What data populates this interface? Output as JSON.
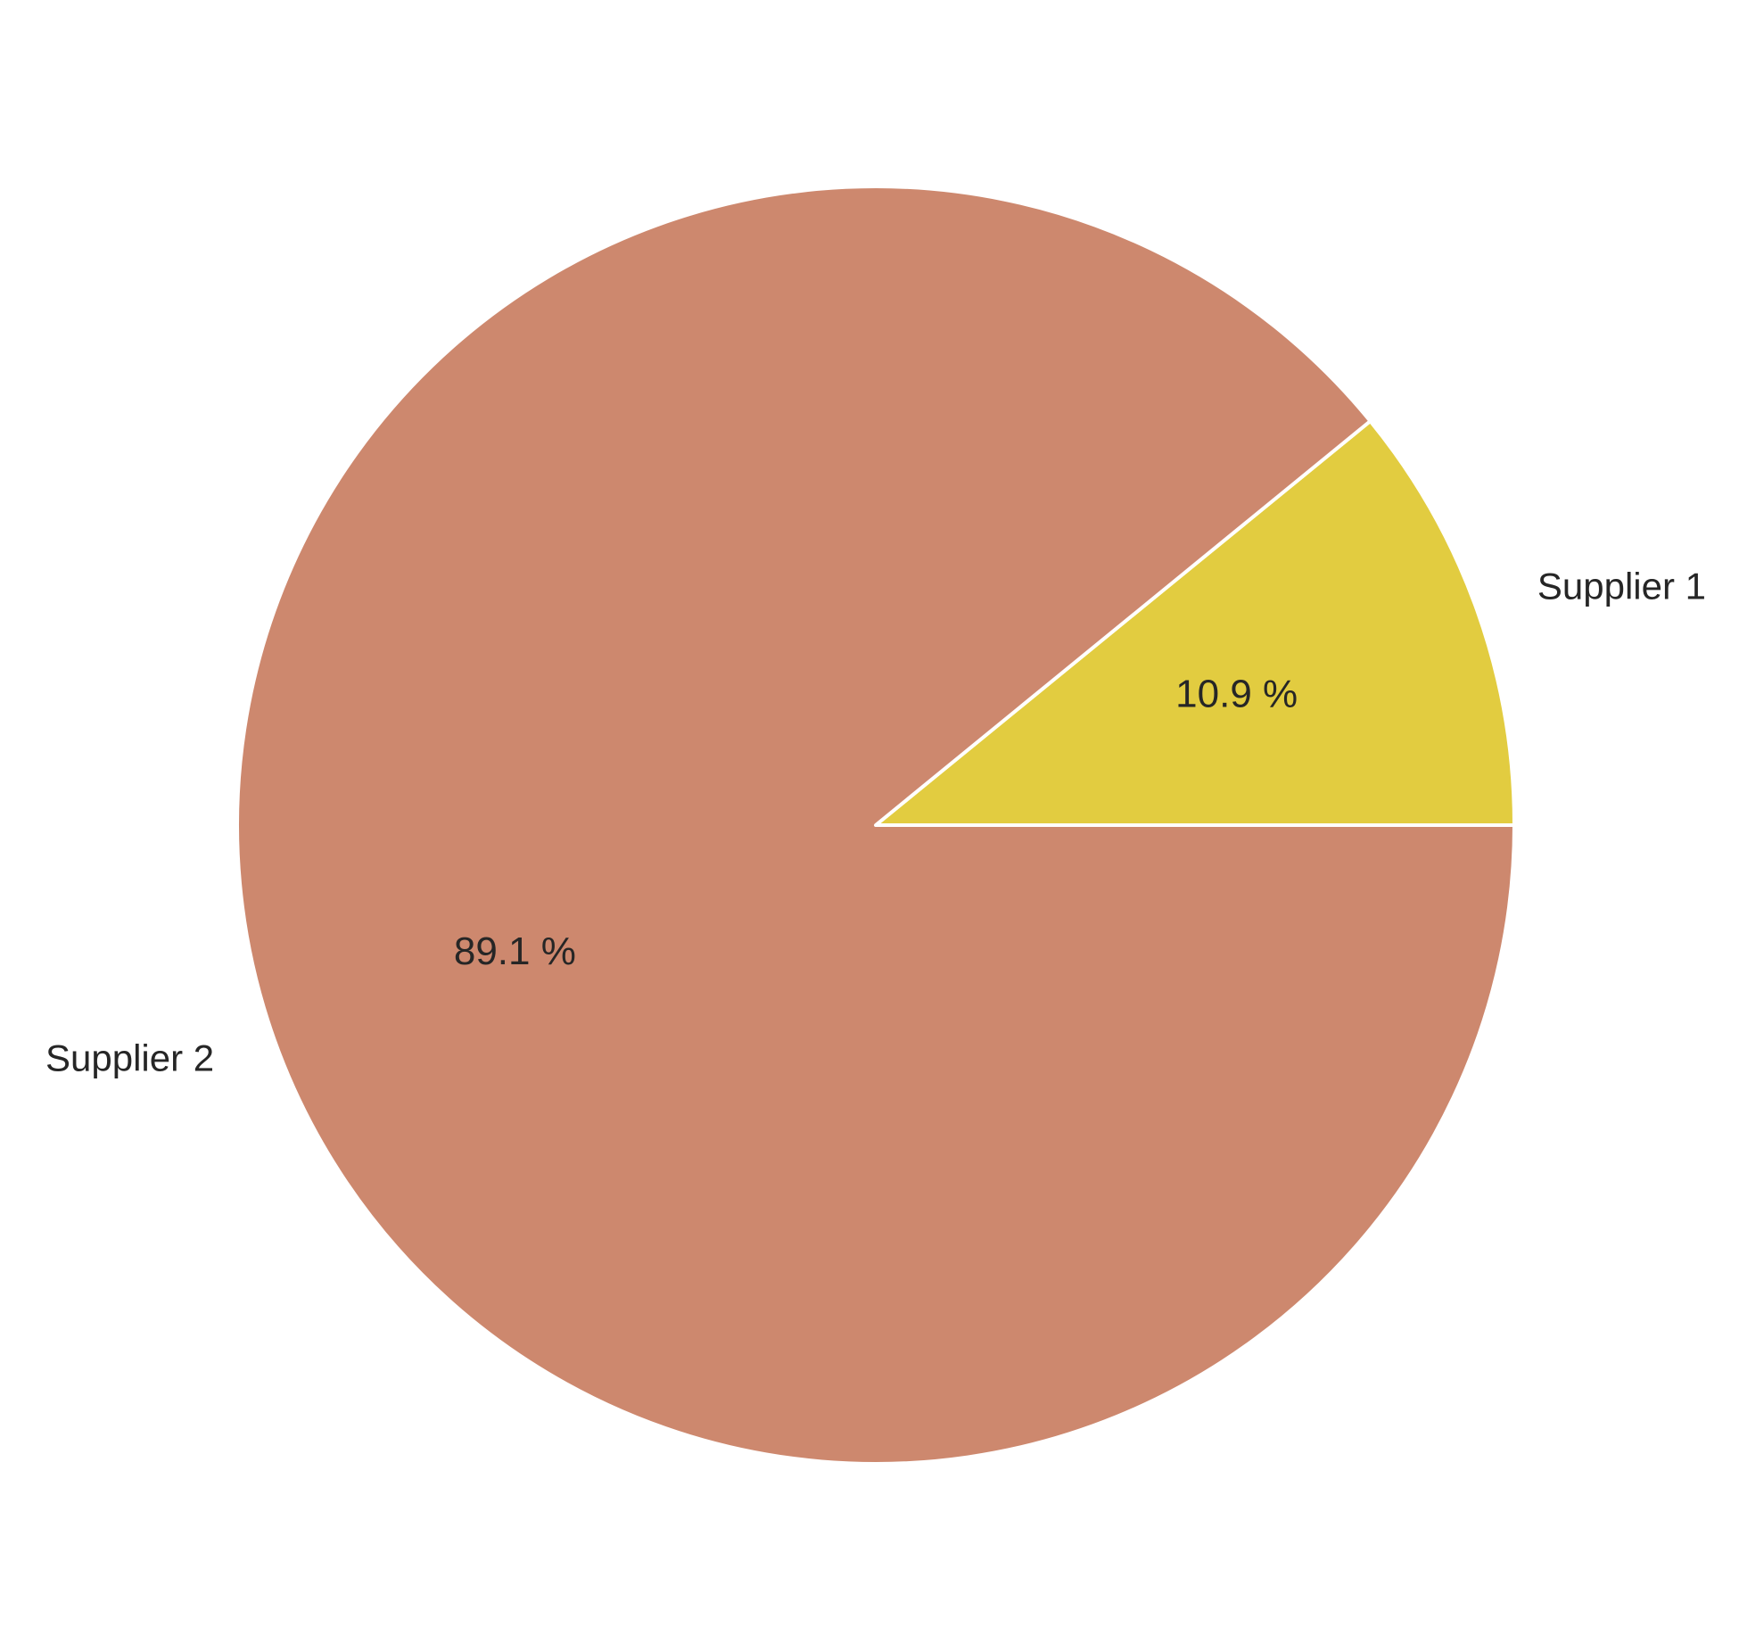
{
  "chart_data": {
    "type": "pie",
    "title": "",
    "categories": [
      "Supplier 1",
      "Supplier 2"
    ],
    "values": [
      10.9,
      89.1
    ],
    "value_labels": [
      "10.9 %",
      "89.1 %"
    ],
    "colors": [
      "#e2cc40",
      "#cd886e"
    ],
    "start_angle_deg": 0,
    "direction": "counterclockwise",
    "legend": "none"
  }
}
